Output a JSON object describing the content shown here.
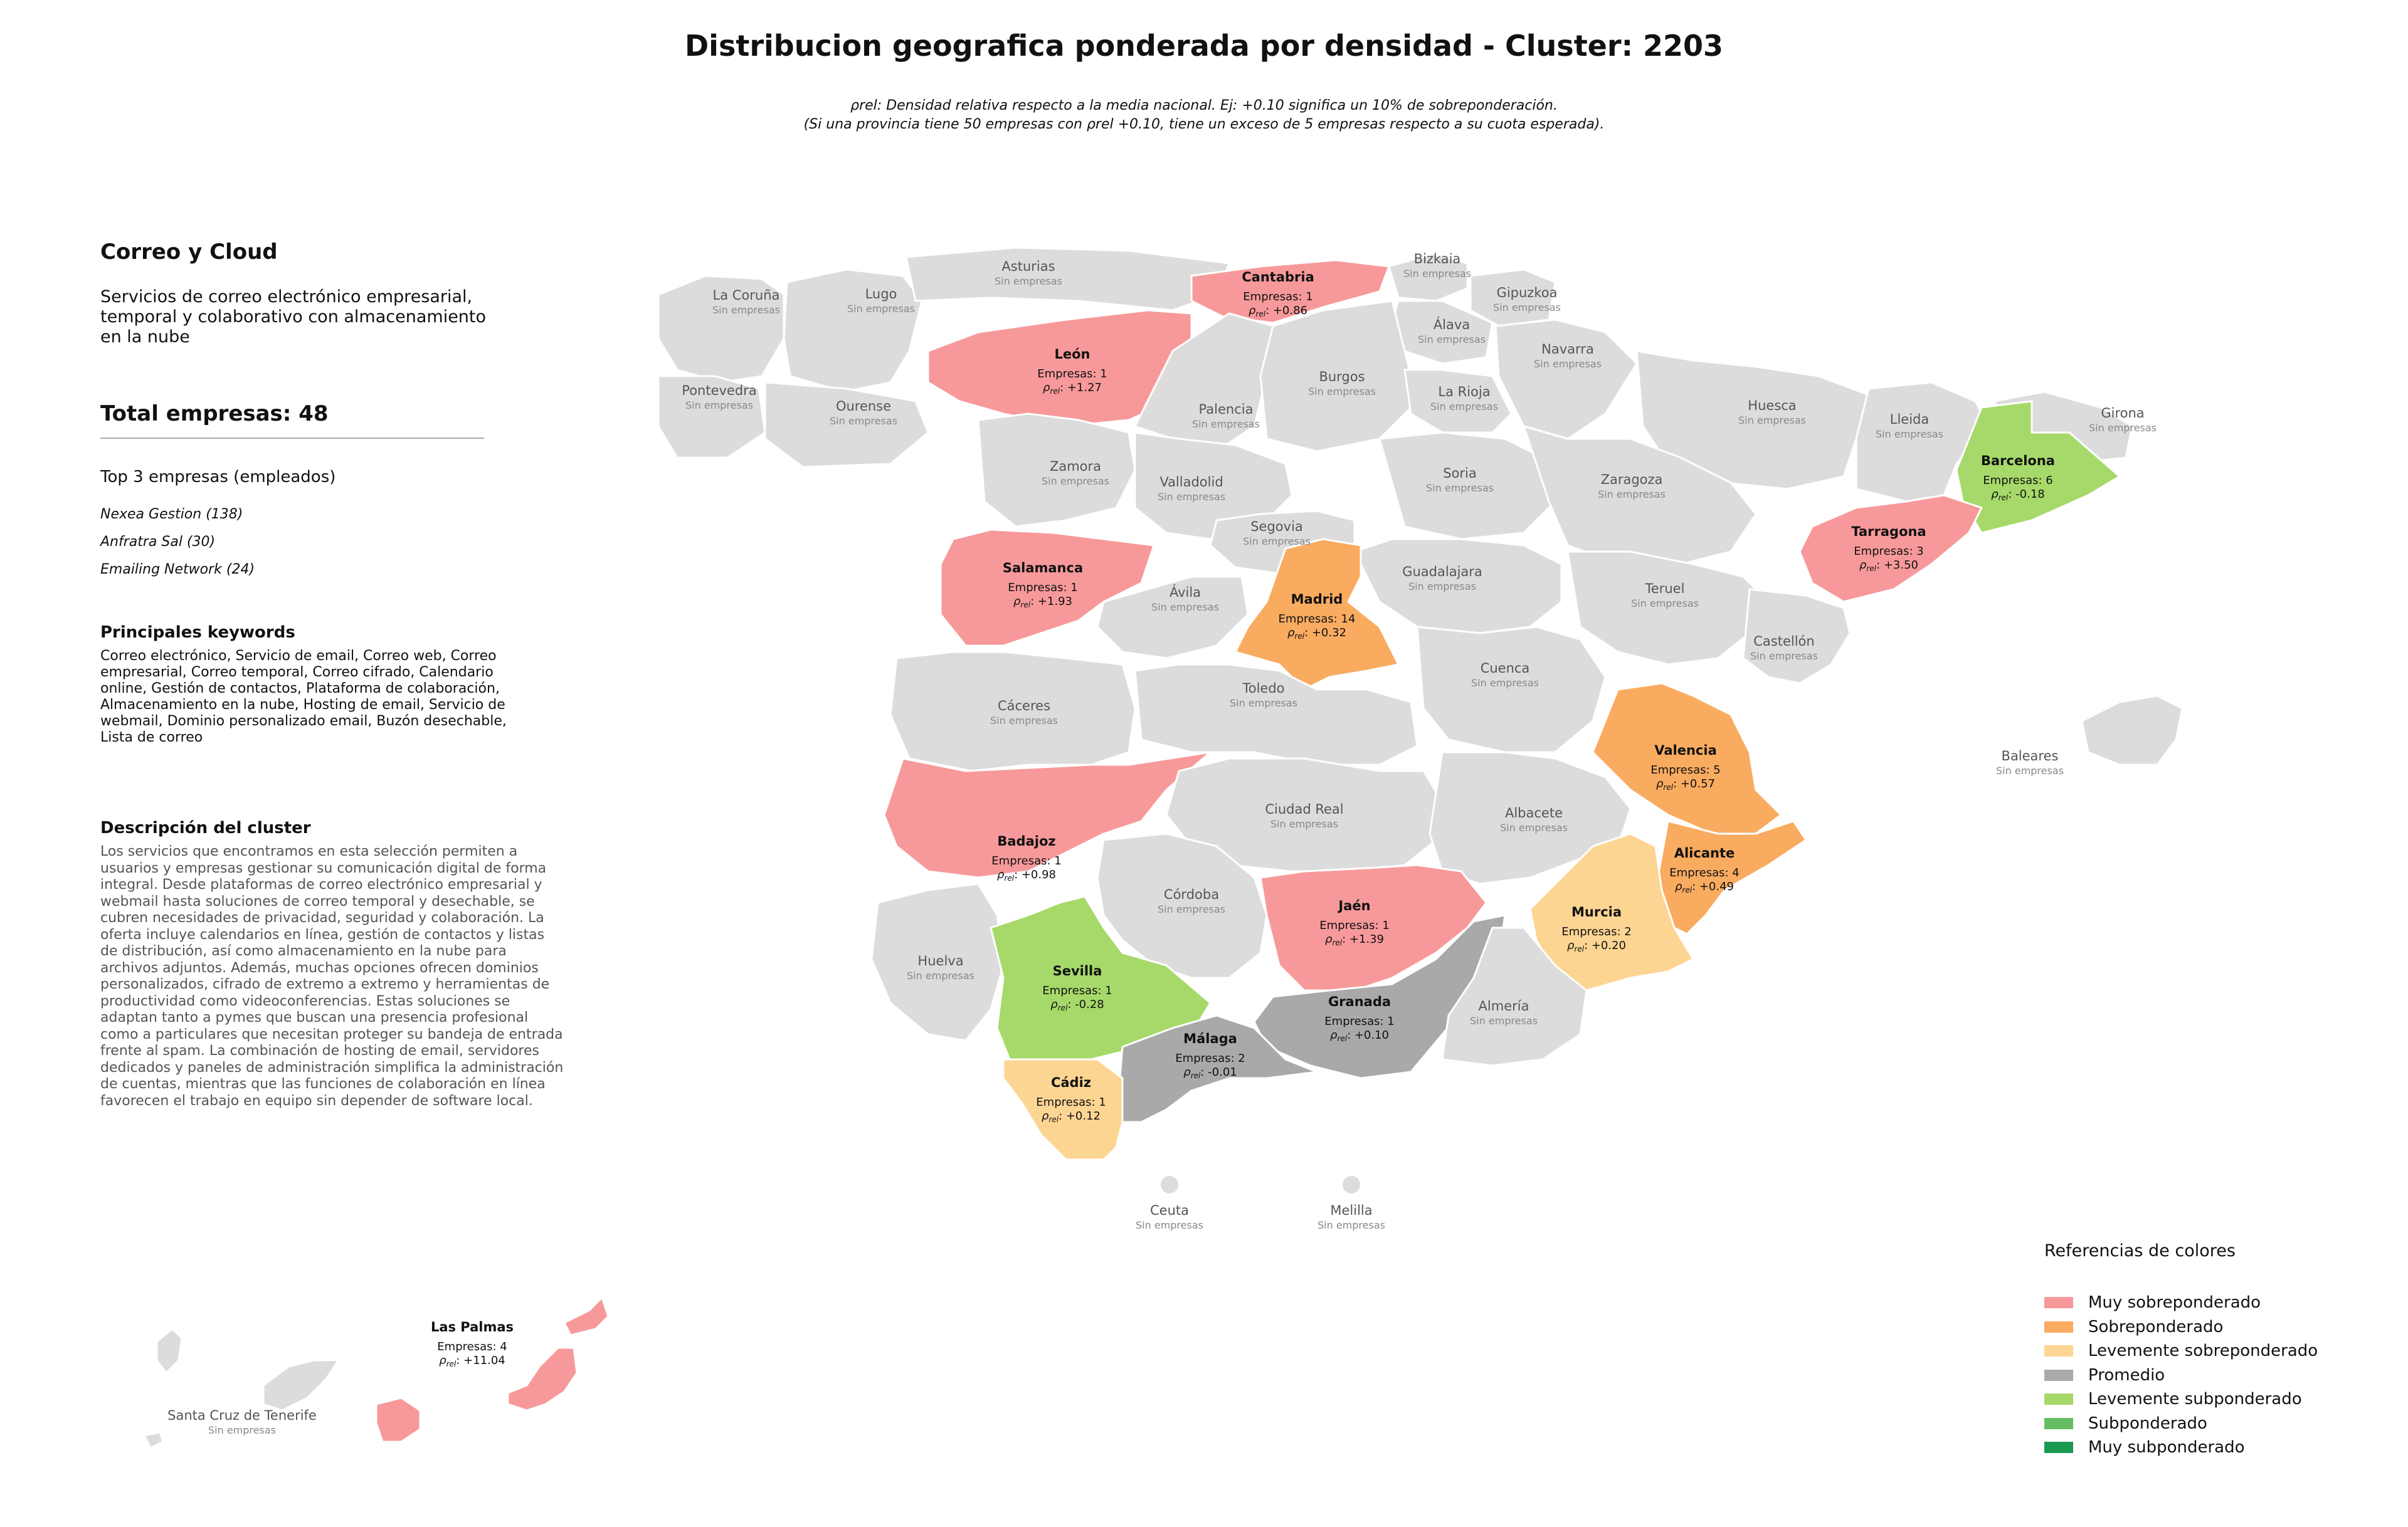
{
  "title": "Distribucion geografica ponderada por densidad - Cluster: 2203",
  "note_line1": "ρrel: Densidad relativa respecto a la media nacional. Ej: +0.10 significa un 10% de sobreponderación.",
  "note_line2": "(Si una provincia tiene 50 empresas con ρrel +0.10, tiene un exceso de 5 empresas respecto a su cuota esperada).",
  "cluster": {
    "name": "Correo y Cloud",
    "summary": "Servicios de correo electrónico empresarial, temporal y colaborativo con almacenamiento en la nube",
    "total_label": "Total empresas: 48",
    "top_heading": "Top 3 empresas (empleados)",
    "top_companies": [
      "Nexea Gestion (138)",
      "Anfratra Sal (30)",
      "Emailing Network (24)"
    ],
    "keywords_heading": "Principales keywords",
    "keywords": "Correo electrónico, Servicio de email, Correo web, Correo empresarial, Correo temporal, Correo cifrado, Calendario online, Gestión de contactos, Plataforma de colaboración, Almacenamiento en la nube, Hosting de email, Servicio de webmail, Dominio personalizado email, Buzón desechable, Lista de correo",
    "description_heading": "Descripción del cluster",
    "description": "Los servicios que encontramos en esta selección permiten a usuarios y empresas gestionar su comunicación digital de forma integral. Desde plataformas de correo electrónico empresarial y webmail hasta soluciones de correo temporal y desechable, se cubren necesidades de privacidad, seguridad y colaboración. La oferta incluye calendarios en línea, gestión de contactos y listas de distribución, así como almacenamiento en la nube para archivos adjuntos. Además, muchas opciones ofrecen dominios personalizados, cifrado de extremo a extremo y herramientas de productividad como videoconferencias. Estas soluciones se adaptan tanto a pymes que buscan una presencia profesional como a particulares que necesitan proteger su bandeja de entrada frente al spam. La combinación de hosting de email, servidores dedicados y paneles de administración simplifica la administración de cuentas, mientras que las funciones de colaboración en línea favorecen el trabajo en equipo sin depender de software local."
  },
  "legend": {
    "title": "Referencias de colores",
    "items": [
      {
        "label": "Muy sobreponderado",
        "color": "#f7999a"
      },
      {
        "label": "Sobreponderado",
        "color": "#f9ab60"
      },
      {
        "label": "Levemente sobreponderado",
        "color": "#fdd593"
      },
      {
        "label": "Promedio",
        "color": "#a9a9a9"
      },
      {
        "label": "Levemente subponderado",
        "color": "#a6d96a"
      },
      {
        "label": "Subponderado",
        "color": "#66bd63"
      },
      {
        "label": "Muy subponderado",
        "color": "#1a9850"
      }
    ]
  },
  "map_colors": {
    "none": "#dcdcdc",
    "border": "#ffffff"
  },
  "empty_label": "Sin empresas",
  "provinces": [
    {
      "name": "La Coruña",
      "companies": null,
      "rho": null,
      "category": null
    },
    {
      "name": "Lugo",
      "companies": null,
      "rho": null,
      "category": null
    },
    {
      "name": "Asturias",
      "companies": null,
      "rho": null,
      "category": null
    },
    {
      "name": "Cantabria",
      "companies": 1,
      "rho": "+0.86",
      "category": "Muy sobreponderado"
    },
    {
      "name": "Bizkaia",
      "companies": null,
      "rho": null,
      "category": null
    },
    {
      "name": "Gipuzkoa",
      "companies": null,
      "rho": null,
      "category": null
    },
    {
      "name": "Álava",
      "companies": null,
      "rho": null,
      "category": null
    },
    {
      "name": "Navarra",
      "companies": null,
      "rho": null,
      "category": null
    },
    {
      "name": "Pontevedra",
      "companies": null,
      "rho": null,
      "category": null
    },
    {
      "name": "Ourense",
      "companies": null,
      "rho": null,
      "category": null
    },
    {
      "name": "León",
      "companies": 1,
      "rho": "+1.27",
      "category": "Muy sobreponderado"
    },
    {
      "name": "Palencia",
      "companies": null,
      "rho": null,
      "category": null
    },
    {
      "name": "Burgos",
      "companies": null,
      "rho": null,
      "category": null
    },
    {
      "name": "La Rioja",
      "companies": null,
      "rho": null,
      "category": null
    },
    {
      "name": "Huesca",
      "companies": null,
      "rho": null,
      "category": null
    },
    {
      "name": "Lleida",
      "companies": null,
      "rho": null,
      "category": null
    },
    {
      "name": "Girona",
      "companies": null,
      "rho": null,
      "category": null
    },
    {
      "name": "Barcelona",
      "companies": 6,
      "rho": "-0.18",
      "category": "Levemente subponderado"
    },
    {
      "name": "Zamora",
      "companies": null,
      "rho": null,
      "category": null
    },
    {
      "name": "Valladolid",
      "companies": null,
      "rho": null,
      "category": null
    },
    {
      "name": "Soria",
      "companies": null,
      "rho": null,
      "category": null
    },
    {
      "name": "Zaragoza",
      "companies": null,
      "rho": null,
      "category": null
    },
    {
      "name": "Tarragona",
      "companies": 3,
      "rho": "+3.50",
      "category": "Muy sobreponderado"
    },
    {
      "name": "Salamanca",
      "companies": 1,
      "rho": "+1.93",
      "category": "Muy sobreponderado"
    },
    {
      "name": "Segovia",
      "companies": null,
      "rho": null,
      "category": null
    },
    {
      "name": "Guadalajara",
      "companies": null,
      "rho": null,
      "category": null
    },
    {
      "name": "Teruel",
      "companies": null,
      "rho": null,
      "category": null
    },
    {
      "name": "Ávila",
      "companies": null,
      "rho": null,
      "category": null
    },
    {
      "name": "Madrid",
      "companies": 14,
      "rho": "+0.32",
      "category": "Sobreponderado"
    },
    {
      "name": "Castellón",
      "companies": null,
      "rho": null,
      "category": null
    },
    {
      "name": "Cáceres",
      "companies": null,
      "rho": null,
      "category": null
    },
    {
      "name": "Toledo",
      "companies": null,
      "rho": null,
      "category": null
    },
    {
      "name": "Cuenca",
      "companies": null,
      "rho": null,
      "category": null
    },
    {
      "name": "Valencia",
      "companies": 5,
      "rho": "+0.57",
      "category": "Sobreponderado"
    },
    {
      "name": "Baleares",
      "companies": null,
      "rho": null,
      "category": null
    },
    {
      "name": "Badajoz",
      "companies": 1,
      "rho": "+0.98",
      "category": "Muy sobreponderado"
    },
    {
      "name": "Ciudad Real",
      "companies": null,
      "rho": null,
      "category": null
    },
    {
      "name": "Albacete",
      "companies": null,
      "rho": null,
      "category": null
    },
    {
      "name": "Alicante",
      "companies": 4,
      "rho": "+0.49",
      "category": "Sobreponderado"
    },
    {
      "name": "Córdoba",
      "companies": null,
      "rho": null,
      "category": null
    },
    {
      "name": "Jaén",
      "companies": 1,
      "rho": "+1.39",
      "category": "Muy sobreponderado"
    },
    {
      "name": "Murcia",
      "companies": 2,
      "rho": "+0.20",
      "category": "Levemente sobreponderado"
    },
    {
      "name": "Huelva",
      "companies": null,
      "rho": null,
      "category": null
    },
    {
      "name": "Sevilla",
      "companies": 1,
      "rho": "-0.28",
      "category": "Levemente subponderado"
    },
    {
      "name": "Granada",
      "companies": 1,
      "rho": "+0.10",
      "category": "Promedio"
    },
    {
      "name": "Almería",
      "companies": null,
      "rho": null,
      "category": null
    },
    {
      "name": "Málaga",
      "companies": 2,
      "rho": "-0.01",
      "category": "Promedio"
    },
    {
      "name": "Cádiz",
      "companies": 1,
      "rho": "+0.12",
      "category": "Levemente sobreponderado"
    },
    {
      "name": "Ceuta",
      "companies": null,
      "rho": null,
      "category": null
    },
    {
      "name": "Melilla",
      "companies": null,
      "rho": null,
      "category": null
    },
    {
      "name": "Las Palmas",
      "companies": 4,
      "rho": "+11.04",
      "category": "Muy sobreponderado"
    },
    {
      "name": "Santa Cruz de Tenerife",
      "companies": null,
      "rho": null,
      "category": null
    }
  ]
}
